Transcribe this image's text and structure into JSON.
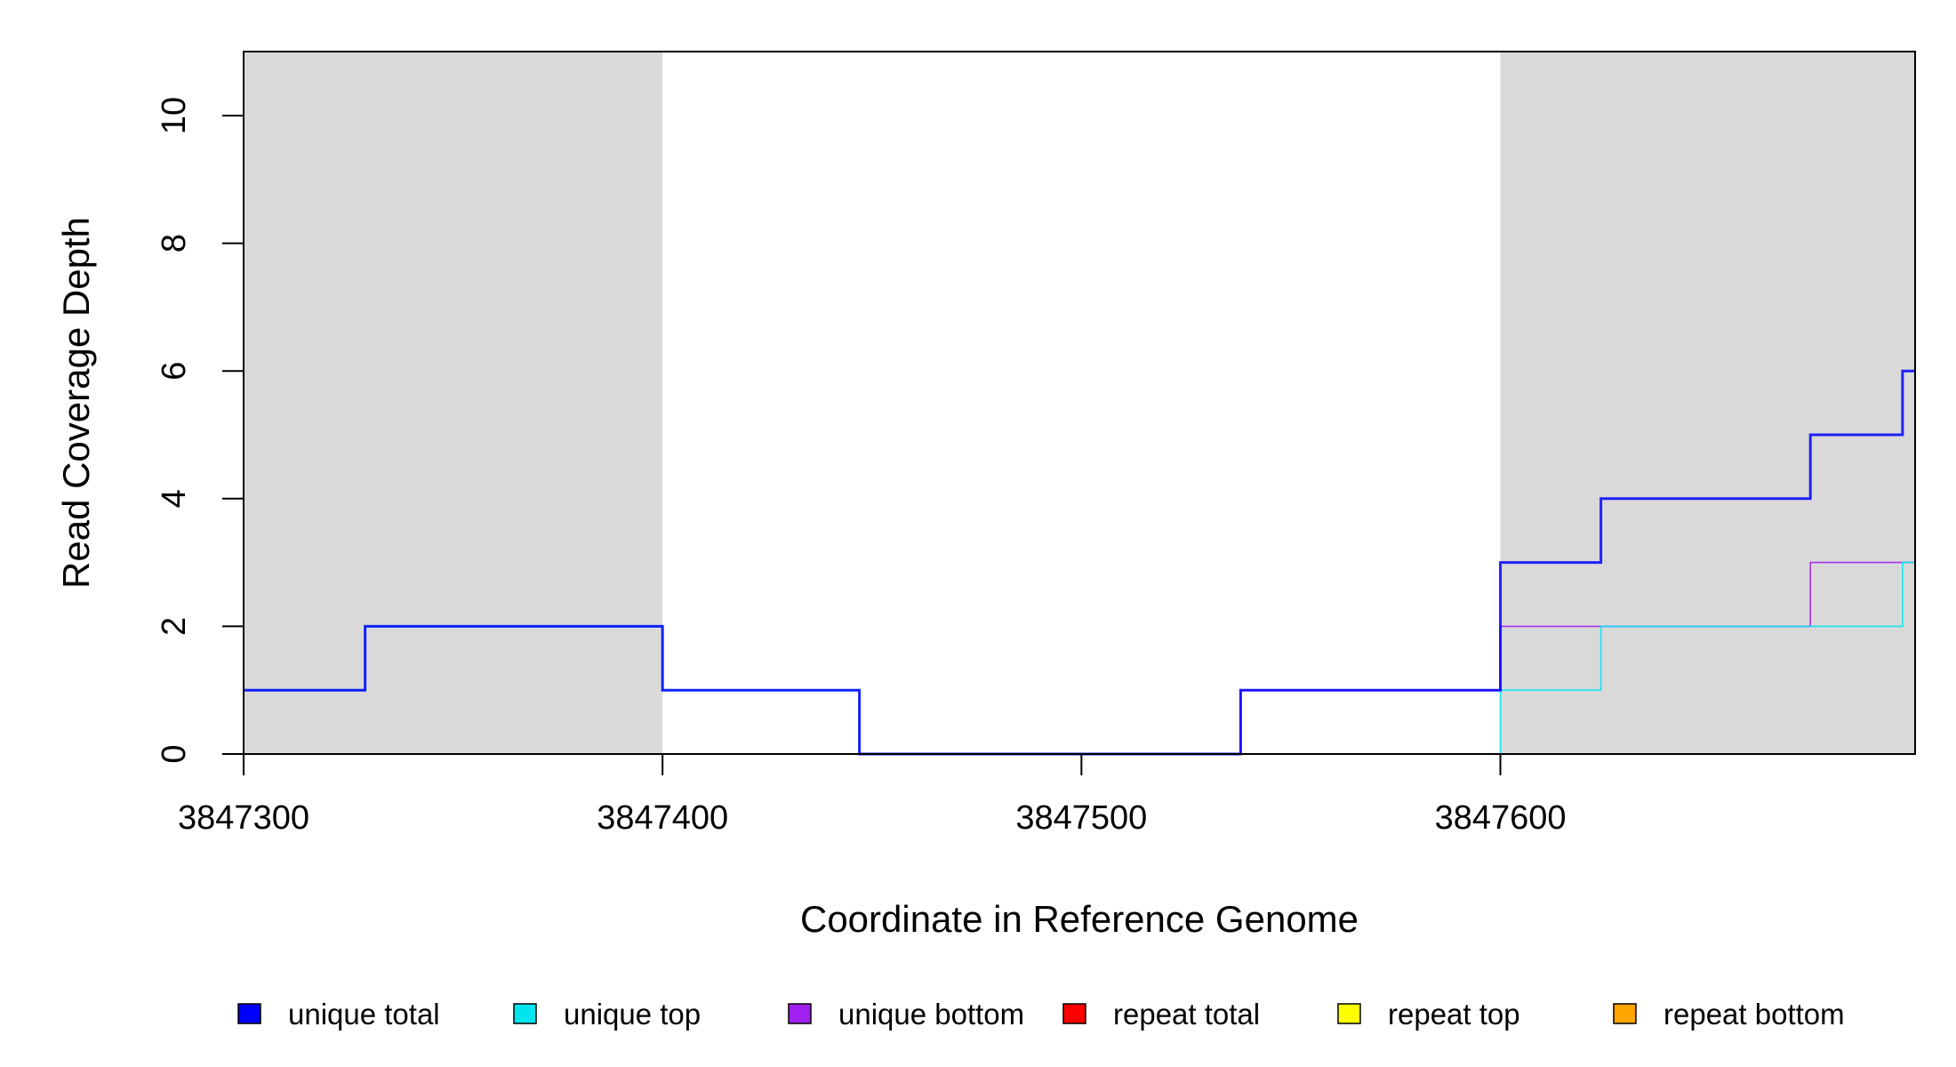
{
  "chart_data": {
    "type": "line",
    "style": "step",
    "xlabel": "Coordinate in Reference Genome",
    "ylabel": "Read Coverage Depth",
    "xlim": [
      3847300,
      3847699
    ],
    "ylim": [
      0,
      10
    ],
    "x_ticks": [
      3847300,
      3847400,
      3847500,
      3847600
    ],
    "y_ticks": [
      0,
      2,
      4,
      6,
      8,
      10
    ],
    "shaded_regions": [
      {
        "start": 3847300,
        "end": 3847400,
        "color": "#d9d9d9"
      },
      {
        "start": 3847600,
        "end": 3847699,
        "color": "#d9d9d9"
      }
    ],
    "series": [
      {
        "name": "unique total",
        "color": "#0000ff",
        "steps": [
          [
            3847300,
            1
          ],
          [
            3847329,
            2
          ],
          [
            3847400,
            1
          ],
          [
            3847447,
            0
          ],
          [
            3847538,
            1
          ],
          [
            3847600,
            3
          ],
          [
            3847624,
            4
          ],
          [
            3847674,
            5
          ],
          [
            3847696,
            6
          ],
          [
            3847699,
            6
          ]
        ]
      },
      {
        "name": "unique top",
        "color": "#00e5ee",
        "steps": [
          [
            3847300,
            1
          ],
          [
            3847329,
            2
          ],
          [
            3847400,
            1
          ],
          [
            3847447,
            0
          ],
          [
            3847600,
            1
          ],
          [
            3847624,
            2
          ],
          [
            3847696,
            3
          ],
          [
            3847699,
            3
          ]
        ]
      },
      {
        "name": "unique bottom",
        "color": "#a020f0",
        "steps": [
          [
            3847300,
            0
          ],
          [
            3847538,
            1
          ],
          [
            3847600,
            2
          ],
          [
            3847674,
            3
          ],
          [
            3847699,
            3
          ]
        ]
      },
      {
        "name": "repeat total",
        "color": "#ff0000",
        "steps": [
          [
            3847300,
            0
          ],
          [
            3847699,
            0
          ]
        ]
      },
      {
        "name": "repeat top",
        "color": "#ffff00",
        "steps": [
          [
            3847300,
            0
          ],
          [
            3847699,
            0
          ]
        ]
      },
      {
        "name": "repeat bottom",
        "color": "#ffa500",
        "steps": [
          [
            3847300,
            0
          ],
          [
            3847699,
            0
          ]
        ]
      }
    ],
    "legend_position": "bottom",
    "grid": false
  }
}
